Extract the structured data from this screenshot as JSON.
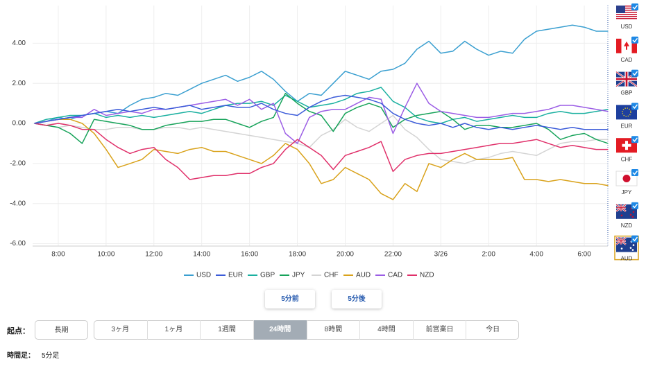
{
  "chart_data": {
    "type": "line",
    "categories": [
      null,
      null,
      "8:00",
      null,
      null,
      null,
      "10:00",
      null,
      null,
      null,
      "12:00",
      null,
      null,
      null,
      "14:00",
      null,
      null,
      null,
      "16:00",
      null,
      null,
      null,
      "18:00",
      null,
      null,
      null,
      "20:00",
      null,
      null,
      null,
      "22:00",
      null,
      null,
      null,
      "3/26",
      null,
      null,
      null,
      "2:00",
      null,
      null,
      null,
      "4:00",
      null,
      null,
      null,
      "6:00",
      null,
      null
    ],
    "series": [
      {
        "name": "USD",
        "color": "#3a9fd0",
        "values": [
          0,
          0.1,
          0.3,
          0.2,
          0.4,
          0.5,
          0.6,
          0.5,
          0.9,
          1.2,
          1.3,
          1.5,
          1.4,
          1.7,
          2.0,
          2.2,
          2.4,
          2.1,
          2.3,
          2.6,
          2.2,
          1.6,
          1.1,
          1.5,
          1.4,
          2.0,
          2.6,
          2.4,
          2.2,
          2.6,
          2.7,
          3.0,
          3.7,
          4.1,
          3.5,
          3.6,
          4.1,
          3.7,
          3.4,
          3.6,
          3.5,
          4.2,
          4.6,
          4.7,
          4.8,
          4.9,
          4.8,
          4.6,
          4.6
        ]
      },
      {
        "name": "EUR",
        "color": "#3b5bd9",
        "values": [
          0,
          0.1,
          0.2,
          0.3,
          0.4,
          0.5,
          0.6,
          0.7,
          0.6,
          0.7,
          0.8,
          0.7,
          0.8,
          0.9,
          0.7,
          0.8,
          0.9,
          0.8,
          0.8,
          1.0,
          0.7,
          0.5,
          0.4,
          0.8,
          1.1,
          1.3,
          1.4,
          1.3,
          1.2,
          1.0,
          0.5,
          0.2,
          0.0,
          -0.1,
          0.0,
          -0.2,
          0.0,
          -0.2,
          -0.3,
          -0.2,
          -0.3,
          -0.2,
          -0.1,
          -0.2,
          -0.3,
          -0.2,
          -0.3,
          -0.3,
          -0.3
        ]
      },
      {
        "name": "GBP",
        "color": "#1ab0a0",
        "values": [
          0,
          0.2,
          0.3,
          0.4,
          0.4,
          0.5,
          0.3,
          0.4,
          0.3,
          0.4,
          0.3,
          0.4,
          0.5,
          0.6,
          0.5,
          0.7,
          0.9,
          1.0,
          1.0,
          1.1,
          0.9,
          1.4,
          1.1,
          0.8,
          0.9,
          1.0,
          1.2,
          1.5,
          1.6,
          1.8,
          1.1,
          0.8,
          0.3,
          0.1,
          0.0,
          0.2,
          0.3,
          0.1,
          0.2,
          0.3,
          0.4,
          0.3,
          0.3,
          0.5,
          0.6,
          0.5,
          0.5,
          0.6,
          0.7
        ]
      },
      {
        "name": "JPY",
        "color": "#17a35a",
        "values": [
          0,
          -0.1,
          -0.2,
          -0.5,
          -1.0,
          0.2,
          0.1,
          0.0,
          -0.1,
          -0.3,
          -0.3,
          -0.1,
          0.0,
          0.1,
          0.1,
          0.2,
          0.2,
          0.0,
          -0.2,
          0.1,
          0.3,
          1.5,
          1.0,
          0.6,
          0.4,
          -0.4,
          0.5,
          0.8,
          1.0,
          0.8,
          -0.2,
          0.2,
          0.4,
          0.5,
          0.6,
          0.2,
          -0.3,
          -0.1,
          -0.1,
          -0.2,
          -0.2,
          -0.1,
          0.0,
          -0.3,
          -0.8,
          -0.6,
          -0.5,
          -0.8,
          -1.0
        ]
      },
      {
        "name": "CHF",
        "color": "#d4d4d4",
        "values": [
          0,
          -0.1,
          -0.2,
          -0.1,
          -0.2,
          -0.3,
          -0.3,
          -0.2,
          -0.2,
          -0.3,
          -0.3,
          -0.2,
          -0.2,
          -0.3,
          -0.2,
          -0.3,
          -0.4,
          -0.5,
          -0.6,
          -0.7,
          -0.8,
          -0.9,
          -1.0,
          -1.2,
          -0.6,
          -0.3,
          0.2,
          -0.2,
          -0.4,
          0.0,
          0.4,
          -0.3,
          -0.7,
          -1.3,
          -1.8,
          -1.9,
          -2.0,
          -1.8,
          -1.7,
          -1.5,
          -1.4,
          -1.5,
          -1.6,
          -1.3,
          -1.0,
          -0.9,
          -0.9,
          -0.8,
          -0.8
        ]
      },
      {
        "name": "AUD",
        "color": "#d9a21b",
        "values": [
          0,
          0.1,
          0.2,
          0.2,
          0.0,
          -0.5,
          -1.3,
          -2.2,
          -2.0,
          -1.8,
          -1.3,
          -1.4,
          -1.5,
          -1.3,
          -1.2,
          -1.4,
          -1.4,
          -1.6,
          -1.8,
          -2.0,
          -1.6,
          -1.0,
          -1.3,
          -2.0,
          -3.0,
          -2.8,
          -2.2,
          -2.5,
          -2.8,
          -3.5,
          -3.8,
          -3.0,
          -3.4,
          -2.0,
          -2.2,
          -1.8,
          -1.5,
          -1.8,
          -1.8,
          -1.8,
          -1.7,
          -2.8,
          -2.8,
          -2.9,
          -2.8,
          -2.9,
          -3.0,
          -3.0,
          -3.1
        ]
      },
      {
        "name": "CAD",
        "color": "#9b5de5",
        "values": [
          0,
          0.1,
          0.2,
          0.3,
          0.3,
          0.7,
          0.4,
          0.5,
          0.6,
          0.5,
          0.7,
          0.7,
          0.8,
          0.9,
          1.0,
          1.1,
          1.2,
          0.9,
          1.2,
          0.7,
          1.0,
          -0.5,
          -1.0,
          0.3,
          0.6,
          0.7,
          0.7,
          1.0,
          1.3,
          1.2,
          -0.5,
          0.8,
          2.0,
          1.0,
          0.6,
          0.5,
          0.4,
          0.3,
          0.3,
          0.4,
          0.5,
          0.5,
          0.6,
          0.7,
          0.9,
          0.9,
          0.8,
          0.7,
          0.6
        ]
      },
      {
        "name": "NZD",
        "color": "#e0306a",
        "values": [
          0,
          -0.1,
          0.0,
          -0.1,
          -0.3,
          -0.3,
          -0.8,
          -1.2,
          -1.5,
          -1.3,
          -1.2,
          -1.8,
          -2.2,
          -2.8,
          -2.7,
          -2.6,
          -2.6,
          -2.5,
          -2.5,
          -2.2,
          -2.0,
          -1.3,
          -0.8,
          -1.2,
          -1.6,
          -2.3,
          -1.6,
          -1.4,
          -1.2,
          -0.9,
          -2.4,
          -1.8,
          -1.6,
          -1.5,
          -1.5,
          -1.4,
          -1.3,
          -1.2,
          -1.1,
          -1.0,
          -1.0,
          -0.9,
          -0.8,
          -1.0,
          -1.2,
          -1.1,
          -1.2,
          -1.3,
          -1.3
        ]
      }
    ],
    "ylim": [
      -6.12,
      5.88
    ],
    "yticks": [
      {
        "value": -6,
        "label": "-6.00"
      },
      {
        "value": -4,
        "label": "-4.00"
      },
      {
        "value": -2,
        "label": "-2.00"
      },
      {
        "value": 0,
        "label": "0.00"
      },
      {
        "value": 2,
        "label": "2.00"
      },
      {
        "value": 4,
        "label": "4.00"
      }
    ],
    "grid": true
  },
  "currency_panel": [
    "USD",
    "CAD",
    "GBP",
    "EUR",
    "CHF",
    "JPY",
    "NZD",
    "AUD"
  ],
  "nav_buttons": [
    "5分前",
    "5分後"
  ],
  "range_label": "起点：",
  "ranges": [
    "長期",
    "3ヶ月",
    "1ヶ月",
    "1週間",
    "24時間",
    "8時間",
    "4時間",
    "前営業日",
    "今日"
  ],
  "timeframe_label": "時間足：",
  "timeframe_value": "5分足"
}
